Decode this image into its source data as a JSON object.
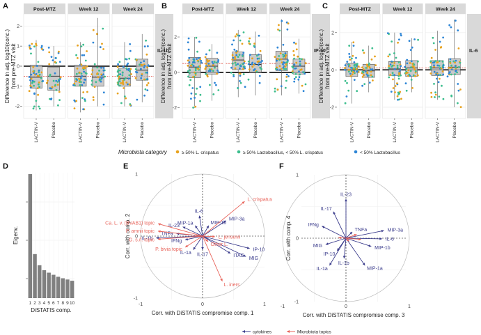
{
  "panel_labels": [
    "A",
    "B",
    "C",
    "D",
    "E",
    "F"
  ],
  "legend": {
    "title": "Microbiota category",
    "items": [
      {
        "label": "≥ 50% L. crispatus",
        "color": "#E8A21E"
      },
      {
        "label": "≥ 50% Lactobacillus, < 50% L. crispatus",
        "color": "#3DBE8E"
      },
      {
        "label": "< 50% Lactobacillus",
        "color": "#2E86D6"
      }
    ]
  },
  "colors": {
    "strip_bg": "#D9D9D9",
    "box_fill": "#BDBDBD",
    "ref_line": "#E05A4E",
    "cytokine_arrow": "#3B3C8C",
    "microbiota_arrow": "#E8635A",
    "bar_fill": "#808080"
  },
  "chart_data": [
    {
      "type": "box",
      "panel": "A",
      "facets": [
        "Post-MTZ",
        "Week 12",
        "Week 24"
      ],
      "right_strip": "IL-1b",
      "categories": [
        "LACTIN-V",
        "Placebo"
      ],
      "ylabel": "Difference in adj. log10(conc.)\nfrom pre-MTZ visit",
      "yticks": [
        -2,
        -1,
        0,
        1,
        2
      ],
      "ylim": [
        -2.6,
        2.6
      ],
      "ref_line": -0.5,
      "boxes": [
        [
          {
            "q1": -1.1,
            "med": -0.55,
            "q3": 0.05,
            "lo": -2.2,
            "hi": 1.3
          },
          {
            "q1": -1.2,
            "med": -0.5,
            "q3": -0.05,
            "lo": -2.0,
            "hi": 1.0
          }
        ],
        [
          {
            "q1": -1.0,
            "med": -0.5,
            "q3": 0.05,
            "lo": -2.3,
            "hi": 1.2
          },
          {
            "q1": -1.0,
            "med": -0.55,
            "q3": -0.05,
            "lo": -2.0,
            "hi": 2.4
          }
        ],
        [
          {
            "q1": -1.0,
            "med": -0.6,
            "q3": -0.1,
            "lo": -2.0,
            "hi": 1.2
          },
          {
            "q1": -0.7,
            "med": -0.2,
            "q3": 0.35,
            "lo": -1.8,
            "hi": 1.6
          }
        ]
      ]
    },
    {
      "type": "box",
      "panel": "B",
      "facets": [
        "Post-MTZ",
        "Week 12",
        "Week 24"
      ],
      "right_strip": "IP-10",
      "categories": [
        "LACTIN-V",
        "Placebo"
      ],
      "ylabel": "Difference in adj. log10(conc.)\nfrom pre-MTZ visit",
      "yticks": [
        -2,
        0,
        2
      ],
      "ylim": [
        -2.6,
        3.3
      ],
      "ref_line": 0.5,
      "boxes": [
        [
          {
            "q1": -0.3,
            "med": 0.3,
            "q3": 0.85,
            "lo": -2.0,
            "hi": 2.0
          },
          {
            "q1": -0.1,
            "med": 0.35,
            "q3": 0.8,
            "lo": -1.6,
            "hi": 1.6
          }
        ],
        [
          {
            "q1": 0.15,
            "med": 0.7,
            "q3": 1.15,
            "lo": -1.4,
            "hi": 2.4
          },
          {
            "q1": 0.0,
            "med": 0.45,
            "q3": 1.0,
            "lo": -1.3,
            "hi": 2.3
          }
        ],
        [
          {
            "q1": 0.1,
            "med": 0.75,
            "q3": 1.2,
            "lo": -1.3,
            "hi": 3.0
          },
          {
            "q1": -0.1,
            "med": 0.35,
            "q3": 0.75,
            "lo": -1.2,
            "hi": 1.9
          }
        ]
      ]
    },
    {
      "type": "box",
      "panel": "C",
      "facets": [
        "Post-MTZ",
        "Week 12",
        "Week 24"
      ],
      "right_strip": "IL-6",
      "categories": [
        "LACTIN-V",
        "Placebo"
      ],
      "ylabel": "Difference in adj. log10(conc.)\nfrom pre-MTZ visit",
      "yticks": [
        -2,
        0,
        2
      ],
      "ylim": [
        -2.6,
        3.0
      ],
      "ref_line": 0.1,
      "boxes": [
        [
          {
            "q1": -0.35,
            "med": 0.0,
            "q3": 0.35,
            "lo": -1.8,
            "hi": 1.5
          },
          {
            "q1": -0.4,
            "med": -0.05,
            "q3": 0.3,
            "lo": -1.2,
            "hi": 1.3
          }
        ],
        [
          {
            "q1": -0.3,
            "med": 0.05,
            "q3": 0.45,
            "lo": -1.6,
            "hi": 2.0
          },
          {
            "q1": -0.35,
            "med": 0.1,
            "q3": 0.5,
            "lo": -1.2,
            "hi": 1.7
          }
        ],
        [
          {
            "q1": -0.3,
            "med": 0.1,
            "q3": 0.5,
            "lo": -1.6,
            "hi": 2.1
          },
          {
            "q1": -0.25,
            "med": 0.15,
            "q3": 0.6,
            "lo": -2.0,
            "hi": 2.7
          }
        ]
      ]
    },
    {
      "type": "bar",
      "panel": "D",
      "ylabel": "Eigenv.",
      "xlabel": "DiSTATIS comp.",
      "categories": [
        "1",
        "2",
        "3",
        "4",
        "5",
        "6",
        "7",
        "8",
        "9",
        "10"
      ],
      "values": [
        1.0,
        0.355,
        0.265,
        0.225,
        0.205,
        0.188,
        0.172,
        0.16,
        0.15,
        0.14
      ]
    },
    {
      "type": "biplot",
      "panel": "E",
      "xlabel": "Corr. with DiSTATIS compromise comp. 1",
      "ylabel": "Corr. with comp. 2",
      "xticks": [
        -1,
        0,
        1
      ],
      "yticks": [
        -1,
        0,
        1
      ],
      "vectors": [
        {
          "label": "IL-6",
          "x": -0.05,
          "y": 0.33,
          "group": "cytokine"
        },
        {
          "label": "MIP-1a",
          "x": -0.12,
          "y": 0.17,
          "group": "cytokine"
        },
        {
          "label": "MIP-1b",
          "x": 0.1,
          "y": 0.17,
          "group": "cytokine"
        },
        {
          "label": "MIP-3a",
          "x": 0.38,
          "y": 0.25,
          "group": "cytokine"
        },
        {
          "label": "IL-23",
          "x": -0.32,
          "y": 0.15,
          "group": "cytokine"
        },
        {
          "label": "TNFa",
          "x": -0.42,
          "y": 0.04,
          "group": "cytokine"
        },
        {
          "label": "IL-1b",
          "x": -0.75,
          "y": -0.03,
          "group": "cytokine"
        },
        {
          "label": "IFNg",
          "x": -0.28,
          "y": -0.06,
          "group": "cytokine"
        },
        {
          "label": "IL-1a",
          "x": -0.15,
          "y": -0.22,
          "group": "cytokine"
        },
        {
          "label": "IL-17",
          "x": 0.0,
          "y": -0.22,
          "group": "cytokine"
        },
        {
          "label": "ITAC",
          "x": 0.45,
          "y": -0.28,
          "group": "cytokine"
        },
        {
          "label": "MIG",
          "x": 0.7,
          "y": -0.33,
          "group": "cytokine"
        },
        {
          "label": "IP-10",
          "x": 0.76,
          "y": -0.2,
          "group": "cytokine"
        },
        {
          "label": "L. crispatus",
          "x": 0.68,
          "y": 0.56,
          "group": "microbiota"
        },
        {
          "label": "L. jensenii",
          "x": 0.2,
          "y": -0.01,
          "group": "microbiota"
        },
        {
          "label": "Other L.",
          "x": 0.09,
          "y": -0.09,
          "group": "microbiota"
        },
        {
          "label": "L. iners",
          "x": 0.32,
          "y": -0.73,
          "group": "microbiota"
        },
        {
          "label": "Ca. L. v. (BVAB1) topic",
          "x": -0.72,
          "y": 0.2,
          "group": "microbiota"
        },
        {
          "label": "P. amnii topic",
          "x": -0.72,
          "y": 0.08,
          "group": "microbiota"
        },
        {
          "label": "G. s./l. topic",
          "x": -0.72,
          "y": -0.05,
          "group": "microbiota"
        },
        {
          "label": "P. bivia topic",
          "x": -0.28,
          "y": -0.18,
          "group": "microbiota"
        }
      ]
    },
    {
      "type": "biplot",
      "panel": "F",
      "xlabel": "Corr. with DiSTATIS compromise comp. 3",
      "ylabel": "Corr. with comp. 4",
      "xticks": [
        -1,
        0,
        1
      ],
      "yticks": [
        -1,
        0,
        1
      ],
      "vectors": [
        {
          "label": "IL-23",
          "x": 0.0,
          "y": 0.62,
          "group": "cytokine"
        },
        {
          "label": "IL-17",
          "x": -0.2,
          "y": 0.42,
          "group": "cytokine"
        },
        {
          "label": "IFNg",
          "x": -0.38,
          "y": 0.19,
          "group": "cytokine"
        },
        {
          "label": "TNFa",
          "x": 0.1,
          "y": 0.1,
          "group": "cytokine"
        },
        {
          "label": "MIP-3a",
          "x": 0.6,
          "y": 0.12,
          "group": "cytokine"
        },
        {
          "label": "IL-6",
          "x": 0.57,
          "y": -0.01,
          "group": "cytokine"
        },
        {
          "label": "MIP-1b",
          "x": 0.4,
          "y": -0.13,
          "group": "cytokine"
        },
        {
          "label": "MIG",
          "x": -0.32,
          "y": -0.1,
          "group": "cytokine"
        },
        {
          "label": "IP-10",
          "x": -0.14,
          "y": -0.2,
          "group": "cytokine"
        },
        {
          "label": "IL-1b",
          "x": -0.03,
          "y": -0.32,
          "group": "cytokine"
        },
        {
          "label": "MIP-1a",
          "x": 0.3,
          "y": -0.43,
          "group": "cytokine"
        },
        {
          "label": "IL-1a",
          "x": -0.26,
          "y": -0.43,
          "group": "cytokine"
        },
        {
          "label": "",
          "x": 0.17,
          "y": 0.06,
          "group": "microbiota"
        },
        {
          "label": "",
          "x": 0.24,
          "y": -0.02,
          "group": "microbiota"
        },
        {
          "label": "",
          "x": -0.12,
          "y": 0.01,
          "group": "microbiota"
        },
        {
          "label": "",
          "x": 0.05,
          "y": -0.05,
          "group": "microbiota"
        }
      ],
      "arrow_legend": [
        {
          "label": "cytokines",
          "group": "cytokine"
        },
        {
          "label": "Microbiota topics",
          "group": "microbiota"
        }
      ]
    }
  ]
}
